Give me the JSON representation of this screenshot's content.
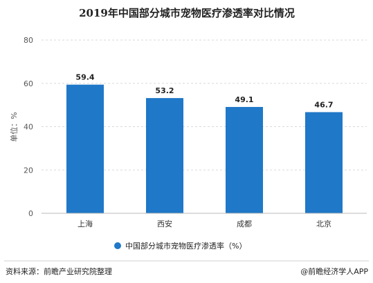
{
  "chart_data": {
    "type": "bar",
    "title": "2019年中国部分城市宠物医疗渗透率对比情况",
    "categories": [
      "上海",
      "西安",
      "成都",
      "北京"
    ],
    "series": [
      {
        "name": "中国部分城市宠物医疗渗透率（%）",
        "values": [
          59.4,
          53.2,
          49.1,
          46.7
        ]
      }
    ],
    "ylabel": "单位：%",
    "ylim": [
      0,
      80
    ],
    "yticks": [
      0,
      20,
      40,
      60,
      80
    ],
    "grid": true,
    "legend": "bottom",
    "bar_color": "#1f78c8"
  },
  "source_text": "资料来源：前瞻产业研究院整理",
  "brand_text": "@前瞻经济学人APP"
}
